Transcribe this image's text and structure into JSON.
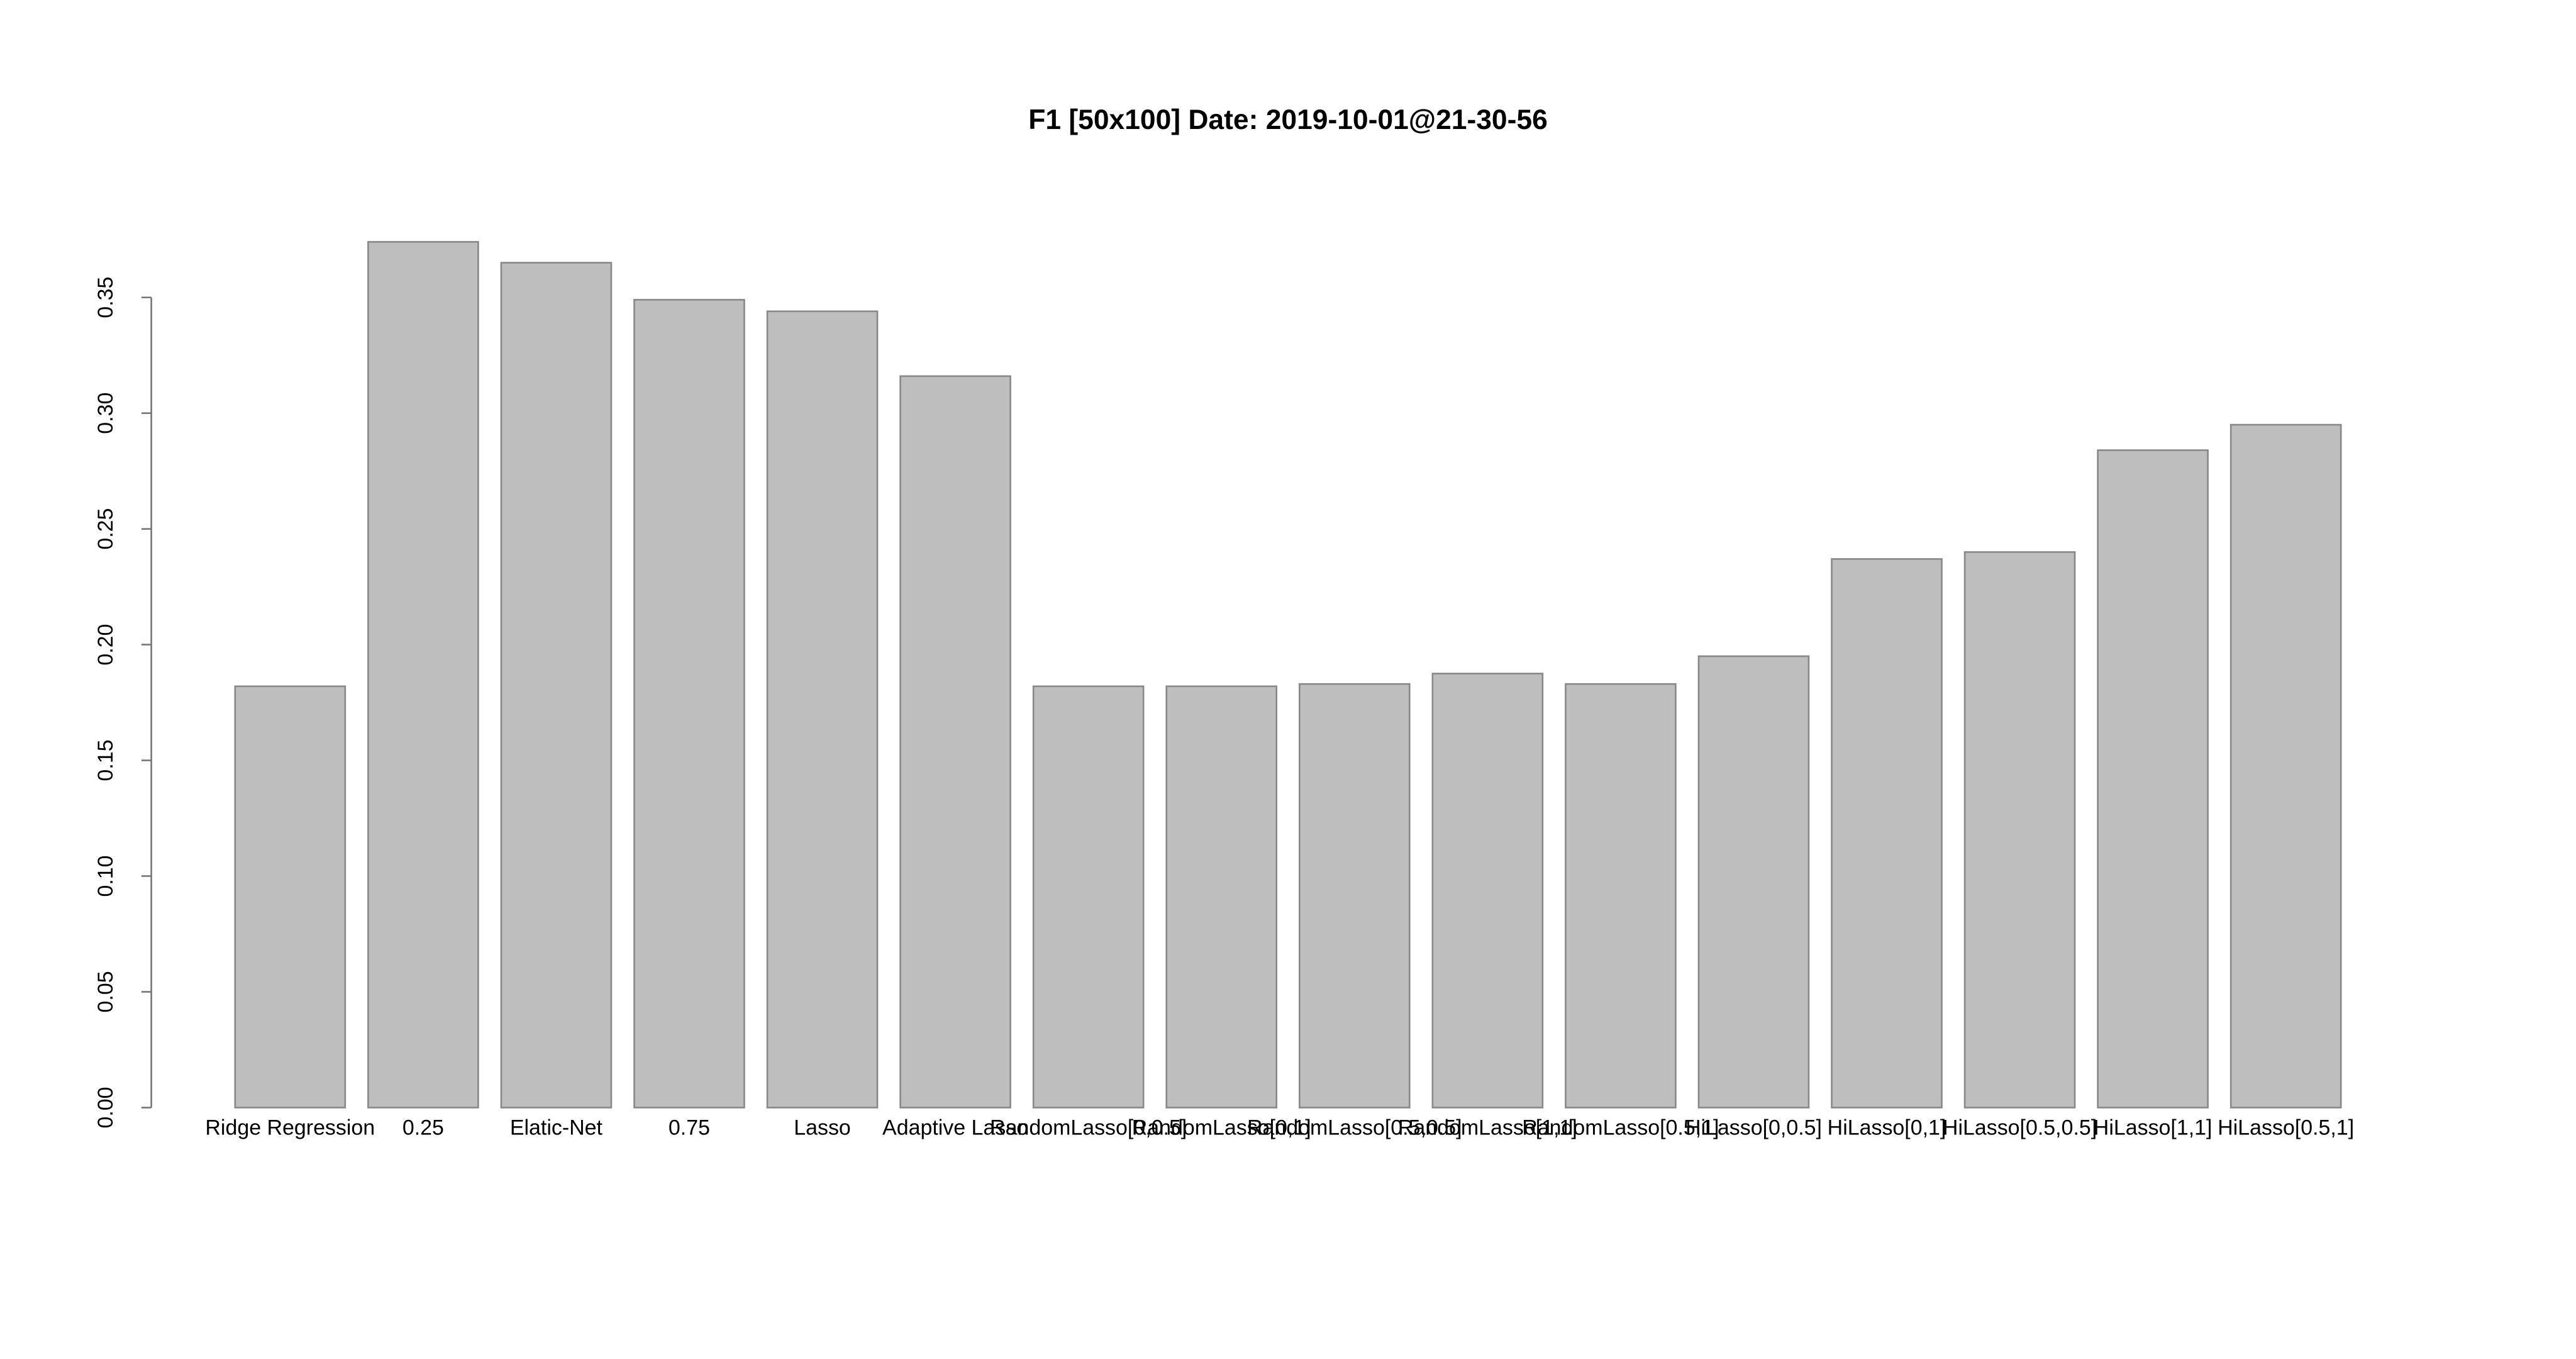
{
  "chart_data": {
    "type": "bar",
    "title": "F1 [50x100] Date: 2019-10-01@21-30-56",
    "categories": [
      "Ridge Regression",
      "0.25",
      "Elatic-Net",
      "0.75",
      "Lasso",
      "Adaptive Lasso",
      "RandomLasso[0,0.5]",
      "RandomLasso[0,1]",
      "RandomLasso[0.5,0.5]",
      "RandomLasso[1,1]",
      "RandomLasso[0.5,1]",
      "HiLasso[0,0.5]",
      "HiLasso[0,1]",
      "HiLasso[0.5,0.5]",
      "HiLasso[1,1]",
      "HiLasso[0.5,1]"
    ],
    "values": [
      0.182,
      0.374,
      0.365,
      0.349,
      0.344,
      0.316,
      0.182,
      0.182,
      0.183,
      0.1875,
      0.183,
      0.195,
      0.237,
      0.24,
      0.284,
      0.295
    ],
    "color": "#bebebe",
    "ylim": [
      0,
      0.35
    ],
    "yticks": [
      {
        "value": 0,
        "label": "0.00"
      },
      {
        "value": 0.05,
        "label": "0.05"
      },
      {
        "value": 0.1,
        "label": "0.10"
      },
      {
        "value": 0.15,
        "label": "0.15"
      },
      {
        "value": 0.2,
        "label": "0.20"
      },
      {
        "value": 0.25,
        "label": "0.25"
      },
      {
        "value": 0.3,
        "label": "0.30"
      },
      {
        "value": 0.35,
        "label": "0.35"
      }
    ],
    "grid": false
  }
}
